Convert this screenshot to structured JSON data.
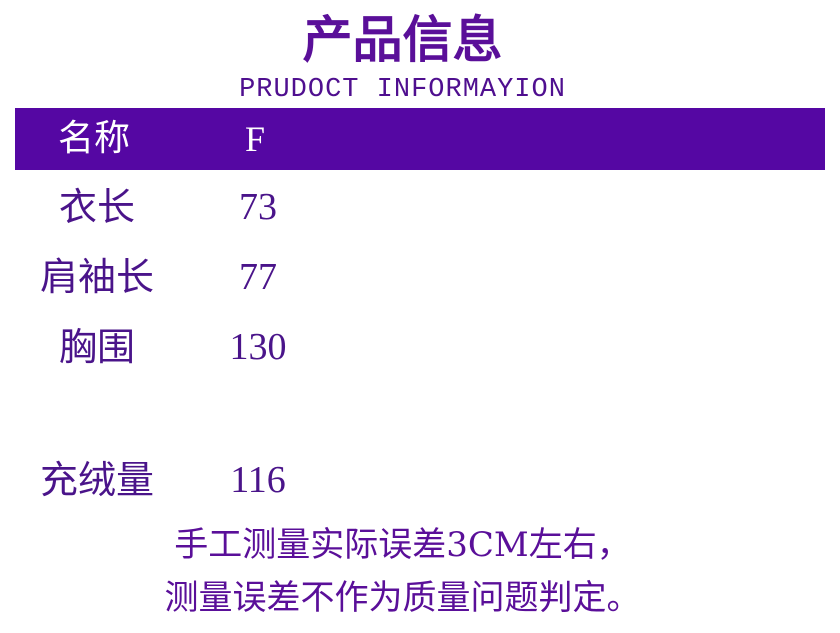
{
  "title": "产品信息",
  "subtitle": "PRUDOCT INFORMAYION",
  "header": {
    "name_label": "名称",
    "size_label": "F"
  },
  "rows": [
    {
      "label": "衣长",
      "value": "73"
    },
    {
      "label": "肩袖长",
      "value": "77"
    },
    {
      "label": "胸围",
      "value": "130"
    },
    {
      "label": "充绒量",
      "value": "116"
    }
  ],
  "notes": [
    "手工测量实际误差3CM左右，",
    "测量误差不作为质量问题判定。"
  ],
  "colors": {
    "accent": "#5507a3",
    "text": "#5a0f99"
  }
}
